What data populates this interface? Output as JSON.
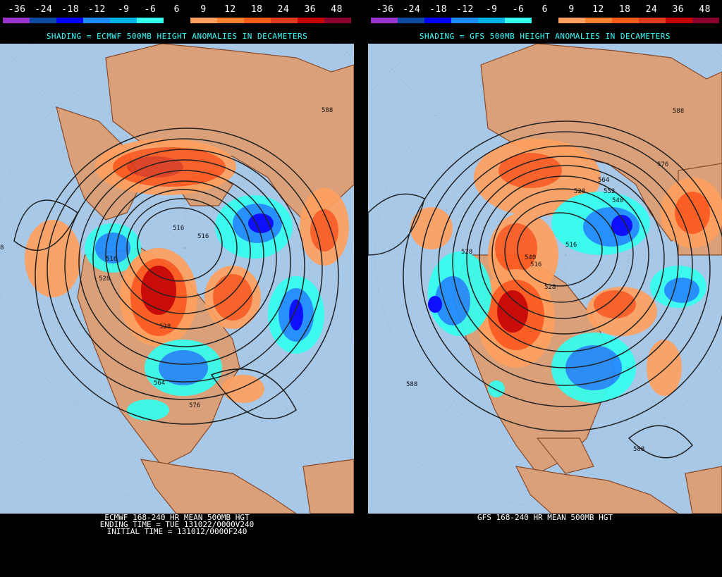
{
  "colorbar": {
    "labels": [
      "-36",
      "-24",
      "-18",
      "-12",
      "-9",
      "-6",
      "6",
      "9",
      "12",
      "18",
      "24",
      "36",
      "48"
    ],
    "colors": [
      "#9933cc",
      "#0a4aa0",
      "#0000ff",
      "#1e8cff",
      "#00b4e6",
      "#33ffee",
      "#000000",
      "#ffa060",
      "#ff8030",
      "#ff5a1e",
      "#e03a1a",
      "#c80000",
      "#8a0030"
    ]
  },
  "left": {
    "title": "SHADING = ECMWF 500MB HEIGHT ANOMALIES IN DECAMETERS",
    "caption": [
      "ECMWF 168-240 HR MEAN 500MB HGT",
      "ENDING TIME = TUE 131022/0000V240",
      "INITIAL TIME = 131012/0000F240"
    ],
    "contour_labels": [
      "516",
      "516",
      "516",
      "528",
      "528",
      "564",
      "576",
      "588",
      "8"
    ]
  },
  "right": {
    "title": "SHADING = GFS 500MB HEIGHT ANOMALIES IN DECAMETERS",
    "caption": [
      "GFS 168-240 HR MEAN 500MB HGT"
    ],
    "contour_labels": [
      "528",
      "540",
      "552",
      "564",
      "576",
      "588",
      "588",
      "588",
      "516",
      "516",
      "528",
      "528",
      "540"
    ]
  },
  "map_colors": {
    "ocean": "#a8c8e8",
    "land": "#d9a07a",
    "border": "#8a4a28"
  }
}
